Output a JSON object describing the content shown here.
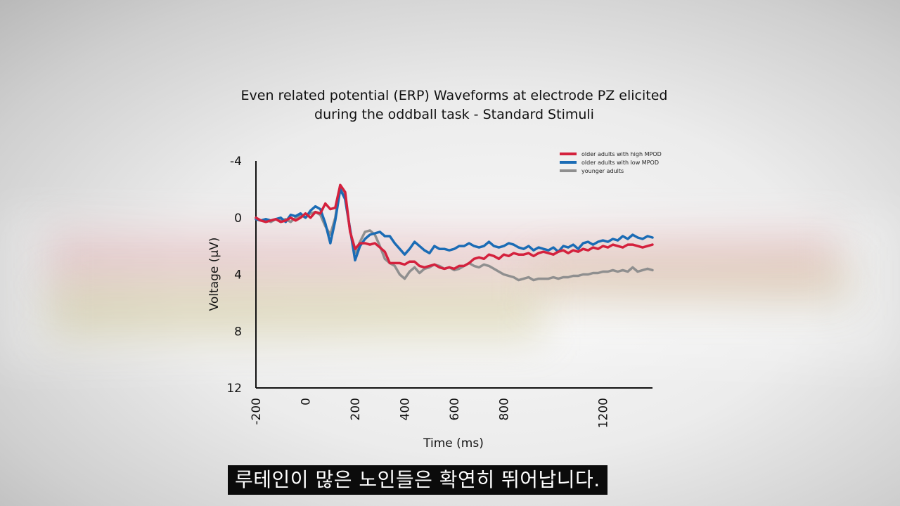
{
  "subtitle": "루테인이 많은 노인들은 확연히 뛰어납니다.",
  "chart_data": {
    "type": "line",
    "title": "Even related potential (ERP) Waveforms at electrode PZ elicited during the oddball task - Standard Stimuli",
    "title_lines": [
      "Even related potential (ERP) Waveforms at electrode PZ elicited",
      "during the oddball task - Standard Stimuli"
    ],
    "xlabel": "Time (ms)",
    "ylabel": "Voltage (μV)",
    "xlim": [
      -200,
      1400
    ],
    "ylim": [
      -4,
      12
    ],
    "y_inverted": true,
    "x_ticks": [
      -200,
      0,
      200,
      400,
      600,
      800,
      1200
    ],
    "y_ticks": [
      -4,
      0,
      4,
      8,
      12
    ],
    "legend_position": "top-right",
    "grid": false,
    "series": [
      {
        "name": "older adults with high MPOD",
        "color": "#d4213d",
        "x": [
          -200,
          -180,
          -160,
          -140,
          -120,
          -100,
          -80,
          -60,
          -40,
          -20,
          0,
          20,
          40,
          60,
          80,
          100,
          120,
          140,
          160,
          180,
          200,
          220,
          240,
          260,
          280,
          300,
          320,
          340,
          360,
          380,
          400,
          420,
          440,
          460,
          480,
          500,
          520,
          540,
          560,
          580,
          600,
          620,
          640,
          660,
          680,
          700,
          720,
          740,
          760,
          780,
          800,
          820,
          840,
          860,
          880,
          900,
          920,
          940,
          960,
          980,
          1000,
          1020,
          1040,
          1060,
          1080,
          1100,
          1120,
          1140,
          1160,
          1180,
          1200,
          1220,
          1240,
          1260,
          1280,
          1300,
          1320,
          1340,
          1360,
          1380,
          1400
        ],
        "y": [
          0,
          0.2,
          0.3,
          0.2,
          0.1,
          0.3,
          0.2,
          0,
          0.2,
          0,
          -0.3,
          0,
          -0.4,
          -0.3,
          -1.0,
          -0.6,
          -0.7,
          -2.3,
          -1.8,
          1.0,
          2.2,
          1.8,
          1.8,
          1.9,
          1.8,
          2.1,
          2.4,
          3.2,
          3.2,
          3.2,
          3.3,
          3.1,
          3.1,
          3.4,
          3.5,
          3.4,
          3.3,
          3.5,
          3.6,
          3.5,
          3.6,
          3.4,
          3.4,
          3.2,
          2.9,
          2.8,
          2.9,
          2.6,
          2.7,
          2.9,
          2.6,
          2.7,
          2.5,
          2.6,
          2.6,
          2.5,
          2.7,
          2.5,
          2.4,
          2.5,
          2.6,
          2.4,
          2.3,
          2.5,
          2.3,
          2.4,
          2.2,
          2.3,
          2.1,
          2.2,
          2.0,
          2.1,
          1.9,
          2.0,
          2.1,
          1.9,
          1.9,
          2.0,
          2.1,
          2.0,
          1.9
        ]
      },
      {
        "name": "older adults with low MPOD",
        "color": "#1b6cb5",
        "x": [
          -200,
          -180,
          -160,
          -140,
          -120,
          -100,
          -80,
          -60,
          -40,
          -20,
          0,
          20,
          40,
          60,
          80,
          100,
          120,
          140,
          160,
          180,
          200,
          220,
          240,
          260,
          280,
          300,
          320,
          340,
          360,
          380,
          400,
          420,
          440,
          460,
          480,
          500,
          520,
          540,
          560,
          580,
          600,
          620,
          640,
          660,
          680,
          700,
          720,
          740,
          760,
          780,
          800,
          820,
          840,
          860,
          880,
          900,
          920,
          940,
          960,
          980,
          1000,
          1020,
          1040,
          1060,
          1080,
          1100,
          1120,
          1140,
          1160,
          1180,
          1200,
          1220,
          1240,
          1260,
          1280,
          1300,
          1320,
          1340,
          1360,
          1380,
          1400
        ],
        "y": [
          0.1,
          0.2,
          0.1,
          0.2,
          0.1,
          0,
          0.3,
          -0.2,
          -0.1,
          -0.3,
          0,
          -0.5,
          -0.8,
          -0.6,
          0.4,
          1.8,
          0.2,
          -2.0,
          -1.3,
          0.8,
          3.0,
          2.0,
          1.5,
          1.2,
          1.1,
          1.0,
          1.3,
          1.3,
          1.8,
          2.2,
          2.6,
          2.2,
          1.7,
          2.0,
          2.3,
          2.5,
          2.0,
          2.2,
          2.2,
          2.3,
          2.2,
          2.0,
          2.0,
          1.8,
          2.0,
          2.1,
          2.0,
          1.7,
          2.0,
          2.1,
          2.0,
          1.8,
          1.9,
          2.1,
          2.2,
          2.0,
          2.3,
          2.1,
          2.2,
          2.3,
          2.1,
          2.4,
          2.0,
          2.1,
          1.9,
          2.2,
          1.8,
          1.7,
          1.9,
          1.7,
          1.6,
          1.7,
          1.5,
          1.6,
          1.3,
          1.5,
          1.2,
          1.4,
          1.5,
          1.3,
          1.4
        ]
      },
      {
        "name": "younger adults",
        "color": "#8f8f8f",
        "x": [
          -200,
          -180,
          -160,
          -140,
          -120,
          -100,
          -80,
          -60,
          -40,
          -20,
          0,
          20,
          40,
          60,
          80,
          100,
          120,
          140,
          160,
          180,
          200,
          220,
          240,
          260,
          280,
          300,
          320,
          340,
          360,
          380,
          400,
          420,
          440,
          460,
          480,
          500,
          520,
          540,
          560,
          580,
          600,
          620,
          640,
          660,
          680,
          700,
          720,
          740,
          760,
          780,
          800,
          820,
          840,
          860,
          880,
          900,
          920,
          940,
          960,
          980,
          1000,
          1020,
          1040,
          1060,
          1080,
          1100,
          1120,
          1140,
          1160,
          1180,
          1200,
          1220,
          1240,
          1260,
          1280,
          1300,
          1320,
          1340,
          1360,
          1380,
          1400
        ],
        "y": [
          0.1,
          0.2,
          0.1,
          0.3,
          0.1,
          0.2,
          0.1,
          0.3,
          0,
          -0.2,
          0,
          -0.3,
          -0.4,
          -0.2,
          0.6,
          1.2,
          0,
          -2.3,
          -1.3,
          0.9,
          2.5,
          1.7,
          1.0,
          0.9,
          1.2,
          2.0,
          2.9,
          3.2,
          3.4,
          4.0,
          4.3,
          3.8,
          3.5,
          3.9,
          3.6,
          3.5,
          3.3,
          3.4,
          3.6,
          3.5,
          3.7,
          3.6,
          3.4,
          3.2,
          3.4,
          3.5,
          3.3,
          3.4,
          3.6,
          3.8,
          4.0,
          4.1,
          4.2,
          4.4,
          4.3,
          4.2,
          4.4,
          4.3,
          4.3,
          4.3,
          4.2,
          4.3,
          4.2,
          4.2,
          4.1,
          4.1,
          4.0,
          4.0,
          3.9,
          3.9,
          3.8,
          3.8,
          3.7,
          3.8,
          3.7,
          3.8,
          3.5,
          3.8,
          3.7,
          3.6,
          3.7
        ]
      }
    ]
  }
}
